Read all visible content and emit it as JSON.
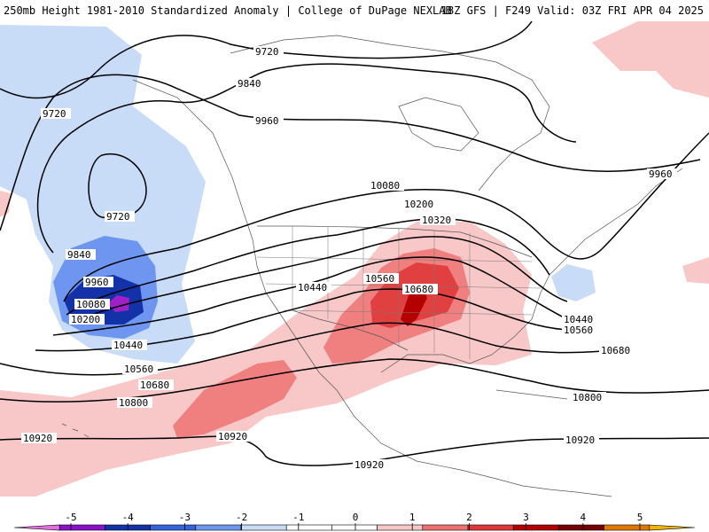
{
  "header": {
    "left_title": "250mb Height 1981-2010 Standardized Anomaly | College of DuPage NEXLAB",
    "right_title": "18Z GFS | F249 Valid: 03Z FRI APR 04 2025"
  },
  "contours": {
    "labels": [
      "9720",
      "9840",
      "9960",
      "10080",
      "10200",
      "10320",
      "10440",
      "10560",
      "10680",
      "10800",
      "10920"
    ]
  },
  "legend": {
    "ticks": [
      "-5",
      "-4",
      "-3",
      "-2",
      "-1",
      "0",
      "1",
      "2",
      "3",
      "4",
      "5"
    ],
    "colors": [
      "#e070e0",
      "#8a12c8",
      "#1432a8",
      "#3464dc",
      "#6e96f0",
      "#c8dcf8",
      "#ffffff",
      "#ffffff",
      "#f8c8c8",
      "#f07070",
      "#e03838",
      "#b40000",
      "#780000",
      "#e07800",
      "#f0b400"
    ]
  },
  "colors": {
    "neg1": "#c8dcf8",
    "neg2": "#6e96f0",
    "neg3": "#3464dc",
    "neg4": "#1432a8",
    "neg5": "#a020c8",
    "pos1": "#f8c8c8",
    "pos2": "#f08080",
    "pos3": "#e04040",
    "pos4": "#b40000"
  },
  "icons": {
    "coastline": "coastline-lines",
    "borders": "state-border-lines"
  }
}
